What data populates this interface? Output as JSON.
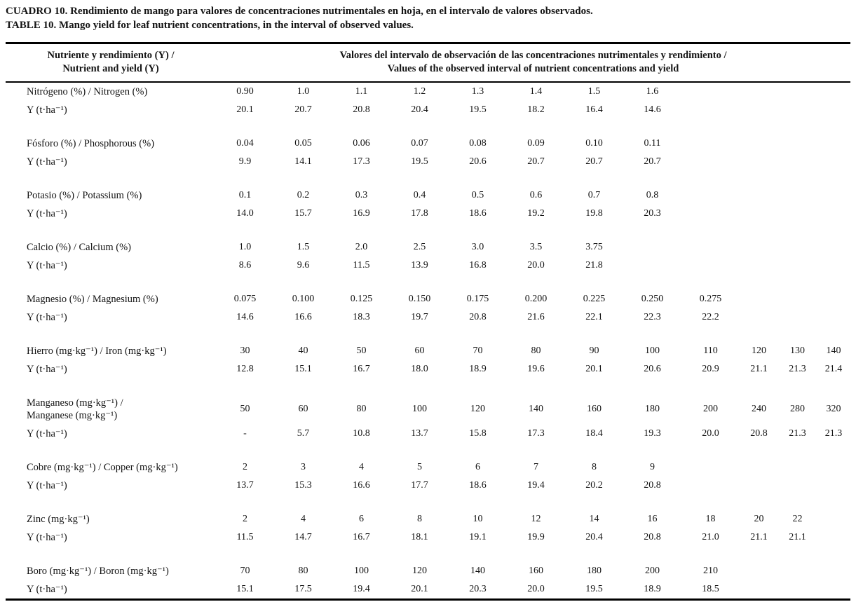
{
  "page": {
    "title_line1": "CUADRO 10. Rendimiento de mango para valores de concentraciones nutrimentales en hoja, en el intervalo de valores observados.",
    "title_line2": "TABLE 10. Mango yield for leaf nutrient concentrations, in the interval of observed values."
  },
  "table": {
    "header": {
      "col1_line1": "Nutriente y rendimiento (Y) /",
      "col1_line2": "Nutrient and yield (Y)",
      "col2_line1": "Valores del intervalo de observación de las concentraciones nutrimentales y rendimiento /",
      "col2_line2": "Values of the observed interval of nutrient concentrations and yield"
    },
    "y_row_label": "Y (t·ha⁻¹)",
    "num_value_columns": 12,
    "sections": [
      {
        "label_lines": [
          "Nitrógeno (%) / Nitrogen (%)"
        ],
        "values": [
          "0.90",
          "1.0",
          "1.1",
          "1.2",
          "1.3",
          "1.4",
          "1.5",
          "1.6"
        ],
        "y_values": [
          "20.1",
          "20.7",
          "20.8",
          "20.4",
          "19.5",
          "18.2",
          "16.4",
          "14.6"
        ]
      },
      {
        "label_lines": [
          "Fósforo (%) / Phosphorous (%)"
        ],
        "values": [
          "0.04",
          "0.05",
          "0.06",
          "0.07",
          "0.08",
          "0.09",
          "0.10",
          "0.11"
        ],
        "y_values": [
          "9.9",
          "14.1",
          "17.3",
          "19.5",
          "20.6",
          "20.7",
          "20.7",
          "20.7"
        ]
      },
      {
        "label_lines": [
          "Potasio (%) / Potassium (%)"
        ],
        "values": [
          "0.1",
          "0.2",
          "0.3",
          "0.4",
          "0.5",
          "0.6",
          "0.7",
          "0.8"
        ],
        "y_values": [
          "14.0",
          "15.7",
          "16.9",
          "17.8",
          "18.6",
          "19.2",
          "19.8",
          "20.3"
        ]
      },
      {
        "label_lines": [
          "Calcio (%) / Calcium (%)"
        ],
        "values": [
          "1.0",
          "1.5",
          "2.0",
          "2.5",
          "3.0",
          "3.5",
          "3.75"
        ],
        "y_values": [
          "8.6",
          "9.6",
          "11.5",
          "13.9",
          "16.8",
          "20.0",
          "21.8"
        ]
      },
      {
        "label_lines": [
          "Magnesio (%) / Magnesium (%)"
        ],
        "values": [
          "0.075",
          "0.100",
          "0.125",
          "0.150",
          "0.175",
          "0.200",
          "0.225",
          "0.250",
          "0.275"
        ],
        "y_values": [
          "14.6",
          "16.6",
          "18.3",
          "19.7",
          "20.8",
          "21.6",
          "22.1",
          "22.3",
          "22.2"
        ]
      },
      {
        "label_lines": [
          "Hierro (mg·kg⁻¹) / Iron (mg·kg⁻¹)"
        ],
        "values": [
          "30",
          "40",
          "50",
          "60",
          "70",
          "80",
          "90",
          "100",
          "110",
          "120",
          "130",
          "140"
        ],
        "y_values": [
          "12.8",
          "15.1",
          "16.7",
          "18.0",
          "18.9",
          "19.6",
          "20.1",
          "20.6",
          "20.9",
          "21.1",
          "21.3",
          "21.4"
        ]
      },
      {
        "label_lines": [
          "Manganeso (mg·kg⁻¹) /",
          "Manganese (mg·kg⁻¹)"
        ],
        "values": [
          "50",
          "60",
          "80",
          "100",
          "120",
          "140",
          "160",
          "180",
          "200",
          "240",
          "280",
          "320"
        ],
        "y_values": [
          "-",
          "5.7",
          "10.8",
          "13.7",
          "15.8",
          "17.3",
          "18.4",
          "19.3",
          "20.0",
          "20.8",
          "21.3",
          "21.3"
        ]
      },
      {
        "label_lines": [
          "Cobre (mg·kg⁻¹) / Copper (mg·kg⁻¹)"
        ],
        "values": [
          "2",
          "3",
          "4",
          "5",
          "6",
          "7",
          "8",
          "9"
        ],
        "y_values": [
          "13.7",
          "15.3",
          "16.6",
          "17.7",
          "18.6",
          "19.4",
          "20.2",
          "20.8"
        ]
      },
      {
        "label_lines": [
          "Zinc (mg·kg⁻¹)"
        ],
        "values": [
          "2",
          "4",
          "6",
          "8",
          "10",
          "12",
          "14",
          "16",
          "18",
          "20",
          "22"
        ],
        "y_values": [
          "11.5",
          "14.7",
          "16.7",
          "18.1",
          "19.1",
          "19.9",
          "20.4",
          "20.8",
          "21.0",
          "21.1",
          "21.1"
        ]
      },
      {
        "label_lines": [
          "Boro (mg·kg⁻¹) / Boron (mg·kg⁻¹)"
        ],
        "values": [
          "70",
          "80",
          "100",
          "120",
          "140",
          "160",
          "180",
          "200",
          "210"
        ],
        "y_values": [
          "15.1",
          "17.5",
          "19.4",
          "20.1",
          "20.3",
          "20.0",
          "19.5",
          "18.9",
          "18.5"
        ]
      }
    ]
  },
  "colors": {
    "text": "#141414",
    "rule": "#000000",
    "background": "#ffffff"
  }
}
